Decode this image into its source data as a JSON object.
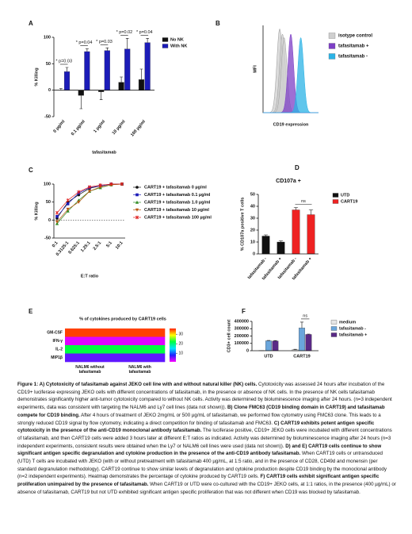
{
  "chart_data": [
    {
      "panel": "A",
      "type": "bar",
      "ylabel": "% Killing",
      "xlabel": "tafasitamab",
      "categories": [
        "0 µg/ml",
        "0.1 µg/ml",
        "1 µg/ml",
        "10 µg/ml",
        "100 µg/ml"
      ],
      "series": [
        {
          "name": "No NK",
          "color": "#111111",
          "values": [
            0,
            -10,
            -3,
            15,
            20
          ],
          "errors": [
            3,
            25,
            15,
            10,
            20
          ]
        },
        {
          "name": "With NK",
          "color": "#1c1cb8",
          "values": [
            35,
            73,
            75,
            78,
            90
          ],
          "errors": [
            8,
            5,
            5,
            20,
            8
          ]
        }
      ],
      "ylim": [
        -50,
        100
      ],
      "yticks": [
        -50,
        0,
        50,
        100
      ],
      "annotations": [
        "* p=0.03",
        "* p=0.04",
        "* p=0.03",
        "* p=0.02",
        "* p=0.04"
      ]
    },
    {
      "panel": "B",
      "type": "density",
      "ylabel": "MFI",
      "xlabel": "CD19 expression",
      "series": [
        {
          "name": "isotype control",
          "color": "#cfcfcf"
        },
        {
          "name": "tafasitamab +",
          "color": "#7d3fc6"
        },
        {
          "name": "tafasitamab -",
          "color": "#2bb3e6"
        }
      ]
    },
    {
      "panel": "C",
      "type": "line",
      "ylabel": "% Killing",
      "xlabel": "E:T ratio",
      "categories": [
        "0:1",
        "0.3125:1",
        "0.625:1",
        "1.25:1",
        "2.5:1",
        "5:1",
        "10:1"
      ],
      "series": [
        {
          "name": "CART19 + tafasitamab 0 µg/ml",
          "color": "#111111",
          "marker": "circle",
          "values": [
            5,
            50,
            70,
            88,
            95,
            100,
            100
          ]
        },
        {
          "name": "CART19 + tafasitamab 0.1 µg/ml",
          "color": "#1c1cb8",
          "marker": "square",
          "values": [
            10,
            45,
            75,
            90,
            95,
            100,
            100
          ]
        },
        {
          "name": "CART19 + tafasitamab 1.0 µg/ml",
          "color": "#2e8b22",
          "marker": "triangle",
          "values": [
            -10,
            25,
            55,
            80,
            90,
            98,
            100
          ]
        },
        {
          "name": "CART19 + tafasitamab 10 µg/ml",
          "color": "#b8560f",
          "marker": "triangle-down",
          "values": [
            -5,
            30,
            50,
            80,
            92,
            98,
            100
          ]
        },
        {
          "name": "CART19 + tafasitamab 100 µg/ml",
          "color": "#e02020",
          "marker": "cross",
          "values": [
            20,
            55,
            78,
            92,
            97,
            100,
            100
          ]
        }
      ],
      "ylim": [
        -50,
        100
      ],
      "yticks": [
        -50,
        0,
        50,
        100
      ],
      "hline": 0
    },
    {
      "panel": "D",
      "type": "bar",
      "title": "CD107a +",
      "ylabel": "% CD107a positive T cells",
      "categories": [
        "tafasitamab -",
        "tafasitamab +",
        "tafasitamab -",
        "tafasitamab +"
      ],
      "series": [
        {
          "name": "UTD",
          "color": "#111111",
          "values": [
            15,
            10,
            null,
            null
          ],
          "errors": [
            1,
            1,
            null,
            null
          ]
        },
        {
          "name": "CART19",
          "color": "#ee2222",
          "values": [
            null,
            null,
            37,
            33
          ],
          "errors": [
            null,
            null,
            2,
            4
          ]
        }
      ],
      "ylim": [
        0,
        50
      ],
      "yticks": [
        0,
        10,
        20,
        30,
        40,
        50
      ],
      "annotations": [
        "ns"
      ]
    },
    {
      "panel": "E",
      "type": "heatmap",
      "title": "% of cytokines  produced by CART19 cells",
      "rows": [
        "GM-CSF",
        "IFN-γ",
        "IL-2",
        "MIP1β"
      ],
      "columns": [
        "NALM6 without tafasitamab",
        "NALM6 with tafasitamab"
      ],
      "values": [
        [
          35,
          35
        ],
        [
          2,
          2
        ],
        [
          22,
          22
        ],
        [
          6,
          6
        ]
      ],
      "zlim": [
        1,
        36
      ],
      "zticks": [
        10,
        20,
        30
      ],
      "colorscale": [
        "#ff00ff",
        "#2020ff",
        "#00e5ff",
        "#00ff40",
        "#ffff00",
        "#ff2000"
      ]
    },
    {
      "panel": "F",
      "type": "bar",
      "ylabel": "CD3+ cell count",
      "categories": [
        "UTD",
        "CART19"
      ],
      "series": [
        {
          "name": "medium",
          "color": "#e6e6e6",
          "values": [
            2000,
            15000
          ],
          "errors": [
            500,
            5000
          ]
        },
        {
          "name": "tafasitamab -",
          "color": "#6aa6dc",
          "values": [
            135000,
            310000
          ],
          "errors": [
            5000,
            80000
          ]
        },
        {
          "name": "tafasitamab +",
          "color": "#5a2a86",
          "values": [
            132000,
            222000
          ],
          "errors": [
            6000,
            5000
          ]
        }
      ],
      "ylim": [
        0,
        400000
      ],
      "yticks": [
        0,
        100000,
        200000,
        300000,
        400000
      ],
      "annotations": [
        "ns"
      ]
    }
  ],
  "caption": [
    "Figure 1: A) Cytotoxicity of tafasitamab against JEKO cell line with and without natural killer (NK) cells.",
    " Cytotoxicity was assessed 24 hours after incubation of the CD19+ luciferase expressing JEKO cells with different concentrations of tafasitamab, in the presence or absence of NK cells. In the presence of NK cells tafasitamab demonstrates significantly higher anti-tumor cytotoxicity compared to without NK cells. Activity was determined by bioluminescence imaging after 24 hours. (n=3 independent experiments, data was consistent with targeting the NALM6 and Ly7 cell lines (data not shown)). ",
    "B) Clone FMC63 (CD19 binding domain in CART19) and tafasitamab compete for CD19 binding.",
    " After 4 hours of treatment of JEKO 2mg/mL or 500 µg/mL of tafasitamab, we performed flow cytometry using FMC63 clone. This leads to a strongly reduced CD19 signal by flow cytometry, indicating a direct competition for binding of tafasitamab and FMC63. ",
    "C) CART19 exhibits potent antigen specific cytotoxicity in the presence of the anti-CD19 monoclonal antibody tafasitamab.",
    " The luciferase positive, CD19+ JEKO cells were incubated with different concentrations of tafasitamab, and then CART19 cells were added 3 hours later at different E:T ratios as indicated. Activity was determined by bioluminescence imaging after 24 hours (n=3 independent experiments, consistent results were obtained when the Ly7 or NALM6 cell lines were used (data not shown)). ",
    "D) and E) CART19 cells continue to show significant antigen specific degranulation and cytokine production in the presence of the anti-CD19 antibody tafasitamab.",
    " When CART19 cells or untransduced  (UTD) T cells are incubated with JEKO (with or without pretreatment with tafasitamab 400 µg/mL, at 1:5 ratio, and in the presence of CD28, CD49d and monensin (per standard degranulation methodology). CART19 continue to show similar levels of degranulation and cytokine production despite CD19 binding by the monoclonal antibody (n=2 independent experiments). Heatmap demonstrates the percentage of cytokine produced by CART19 cells. ",
    "F) CART19 cells exhibit significant antigen specific proliferation unimpaired by the presence of tafasitamab.",
    " When CART19 or UTD were co-cultured with the CD19+ JEKO cells, at 1:1 ratios, in the presence (400 µg/mL) or absence of tafasitamab, CART19 but not UTD exhibited significant antigen specific proliferation that was not different when CD19 was blocked by tafasitamab."
  ]
}
